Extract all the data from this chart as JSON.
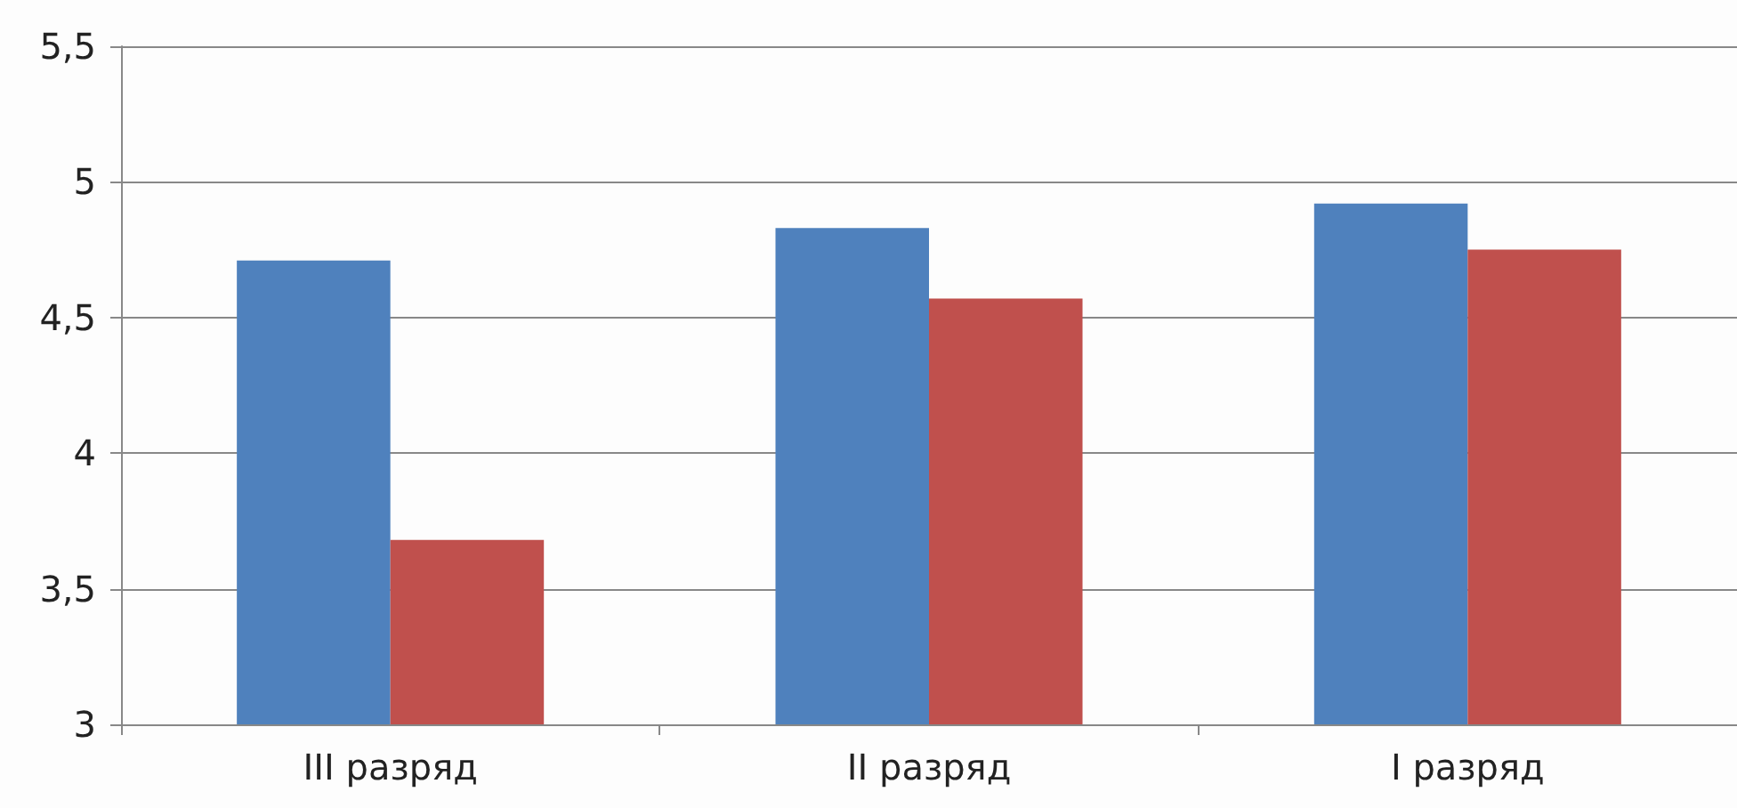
{
  "chart_data": {
    "type": "bar",
    "categories": [
      "III разряд",
      "II разряд",
      "I разряд"
    ],
    "series": [
      {
        "color": "#4f81bd",
        "values": [
          4.71,
          4.83,
          4.92
        ]
      },
      {
        "color": "#c0504d",
        "values": [
          3.68,
          4.57,
          4.75
        ]
      }
    ],
    "ylim": [
      3,
      5.5
    ],
    "yticks": [
      3,
      {
        "value": 3.5,
        "label": "3,5"
      },
      4,
      {
        "value": 4.5,
        "label": "4,5"
      },
      5,
      {
        "value": 5.5,
        "label": "5,5"
      }
    ],
    "grid": "y"
  }
}
